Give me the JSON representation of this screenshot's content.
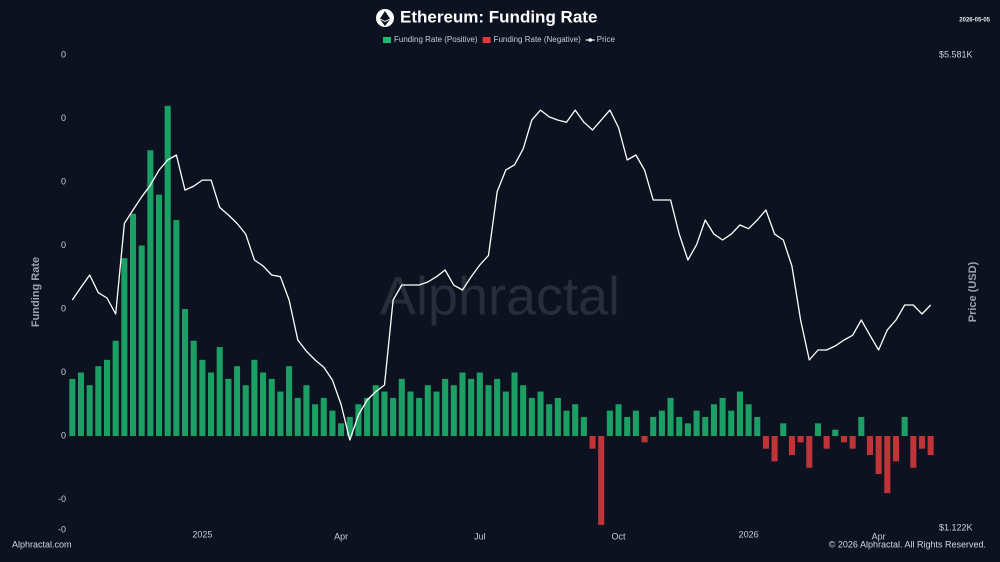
{
  "chart_data": {
    "type": "bar",
    "title": "Ethereum: Funding Rate",
    "date": "2026-05-05",
    "watermark": "Alphractal",
    "y_label": "Funding Rate",
    "y2_label": "Price (USD)",
    "footer_left": "Alphractal.com",
    "footer_right": "© 2026 Alphractal. All Rights Reserved.",
    "grid": false,
    "legend": "top",
    "categories": [
      null,
      null,
      null,
      null,
      null,
      null,
      null,
      null,
      null,
      null,
      null,
      null,
      null,
      null,
      null,
      "2025",
      null,
      null,
      null,
      null,
      null,
      null,
      null,
      null,
      null,
      null,
      null,
      null,
      null,
      null,
      null,
      "Apr",
      null,
      null,
      null,
      null,
      null,
      null,
      null,
      null,
      null,
      null,
      null,
      null,
      null,
      null,
      null,
      "Jul",
      null,
      null,
      null,
      null,
      null,
      null,
      null,
      null,
      null,
      null,
      null,
      null,
      null,
      null,
      null,
      "Oct",
      null,
      null,
      null,
      null,
      null,
      null,
      null,
      null,
      null,
      null,
      null,
      null,
      null,
      null,
      "2026",
      null,
      null,
      null,
      null,
      null,
      null,
      null,
      null,
      null,
      null,
      null,
      null,
      null,
      null,
      "Apr",
      null,
      null,
      null,
      null,
      null,
      null
    ],
    "ylim": [
      -0.0148,
      0.06
    ],
    "yticks": [
      {
        "value": 0.06,
        "label": "0"
      },
      {
        "value": 0.05,
        "label": "0"
      },
      {
        "value": 0.04,
        "label": "0"
      },
      {
        "value": 0.03,
        "label": "0"
      },
      {
        "value": 0.02,
        "label": "0"
      },
      {
        "value": 0.01,
        "label": "0"
      },
      0,
      {
        "value": -0.01,
        "label": "-0"
      },
      {
        "value": -0.0148,
        "label": "-0"
      }
    ],
    "y2lim": [
      1122,
      5581
    ],
    "y2ticks": [
      {
        "value": 5581,
        "label": "$5.581K"
      },
      {
        "value": 1122,
        "label": "$1.122K"
      }
    ],
    "series": [
      {
        "name": "Funding Rate (Positive)",
        "color": "#1fb871",
        "values": [
          0.009,
          0.01,
          0.008,
          0.011,
          0.012,
          0.015,
          0.028,
          0.035,
          0.03,
          0.045,
          0.038,
          0.052,
          0.034,
          0.02,
          0.015,
          0.012,
          0.01,
          0.014,
          0.009,
          0.011,
          0.008,
          0.012,
          0.01,
          0.009,
          0.007,
          0.011,
          0.006,
          0.008,
          0.005,
          0.006,
          0.004,
          0.002,
          0.003,
          0.005,
          0.006,
          0.008,
          0.007,
          0.006,
          0.009,
          0.007,
          0.006,
          0.008,
          0.007,
          0.009,
          0.008,
          0.01,
          0.009,
          0.01,
          0.008,
          0.009,
          0.007,
          0.01,
          0.008,
          0.006,
          0.007,
          0.005,
          0.006,
          0.004,
          0.005,
          0.003,
          null,
          null,
          0.004,
          0.005,
          0.003,
          0.004,
          null,
          0.003,
          0.004,
          0.006,
          0.003,
          0.002,
          0.004,
          0.003,
          0.005,
          0.006,
          0.004,
          0.007,
          0.005,
          0.003,
          null,
          null,
          0.002,
          null,
          null,
          null,
          0.002,
          null,
          0.001,
          null,
          null,
          0.003,
          null,
          null,
          null,
          null,
          0.003,
          null,
          null,
          null
        ]
      },
      {
        "name": "Funding Rate (Negative)",
        "color": "#e0393e",
        "values": [
          null,
          null,
          null,
          null,
          null,
          null,
          null,
          null,
          null,
          null,
          null,
          null,
          null,
          null,
          null,
          null,
          null,
          null,
          null,
          null,
          null,
          null,
          null,
          null,
          null,
          null,
          null,
          null,
          null,
          null,
          null,
          null,
          null,
          null,
          null,
          null,
          null,
          null,
          null,
          null,
          null,
          null,
          null,
          null,
          null,
          null,
          null,
          null,
          null,
          null,
          null,
          null,
          null,
          null,
          null,
          null,
          null,
          null,
          null,
          null,
          -0.002,
          -0.014,
          null,
          null,
          null,
          null,
          -0.001,
          null,
          null,
          null,
          null,
          null,
          null,
          null,
          null,
          null,
          null,
          null,
          null,
          null,
          -0.002,
          -0.004,
          null,
          -0.003,
          -0.001,
          -0.005,
          null,
          -0.002,
          null,
          -0.001,
          -0.002,
          null,
          -0.003,
          -0.006,
          -0.009,
          -0.004,
          null,
          -0.005,
          -0.002,
          -0.003
        ]
      },
      {
        "name": "Price",
        "color": "#ffffff",
        "type": "line",
        "axis": "y2",
        "values": [
          3281,
          3400,
          3516,
          3350,
          3300,
          3150,
          4000,
          4126,
          4250,
          4360,
          4500,
          4595,
          4642,
          4313,
          4350,
          4407,
          4407,
          4150,
          4079,
          4000,
          3900,
          3657,
          3600,
          3516,
          3500,
          3281,
          2906,
          2800,
          2718,
          2650,
          2530,
          2300,
          1967,
          2200,
          2342,
          2420,
          2483,
          3281,
          3422,
          3422,
          3422,
          3450,
          3500,
          3563,
          3420,
          3375,
          3500,
          3610,
          3700,
          4300,
          4501,
          4550,
          4700,
          4970,
          5064,
          5000,
          4970,
          4950,
          5064,
          4950,
          4877,
          4970,
          5064,
          4900,
          4595,
          4642,
          4500,
          4220,
          4220,
          4220,
          3900,
          3657,
          3800,
          4032,
          3900,
          3844,
          3900,
          3985,
          3950,
          4032,
          4126,
          3900,
          3844,
          3600,
          3093,
          2718,
          2812,
          2812,
          2850,
          2906,
          2950,
          3093,
          2950,
          2812,
          3000,
          3093,
          3234,
          3234,
          3150,
          3234
        ]
      }
    ]
  }
}
